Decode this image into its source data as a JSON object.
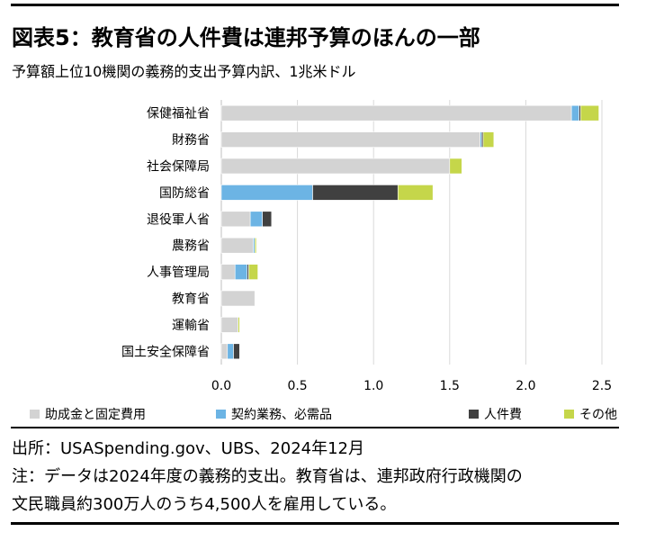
{
  "header": {
    "title": "図表5：教育省の人件費は連邦予算のほんの一部",
    "subtitle": "予算額上位10機関の義務的支出予算内訳、1兆米ドル"
  },
  "footer": {
    "source": "出所：USASpending.gov、UBS、2024年12月",
    "note_line1": "注：データは2024年度の義務的支出。教育省は、連邦政府行政機関の",
    "note_line2": "文民職員約300万人のうち4,500人を雇用している。"
  },
  "chart_data": {
    "type": "bar",
    "orientation": "horizontal",
    "stacked": true,
    "categories": [
      "保健福祉省",
      "財務省",
      "社会保障局",
      "国防総省",
      "退役軍人省",
      "農務省",
      "人事管理局",
      "教育省",
      "運輸省",
      "国土安全保障省"
    ],
    "series": [
      {
        "name": "助成金と固定費用",
        "color": "#d3d3d3",
        "values": [
          2.3,
          1.7,
          1.5,
          0.0,
          0.19,
          0.21,
          0.09,
          0.22,
          0.11,
          0.04
        ]
      },
      {
        "name": "契約業務、必需品",
        "color": "#6cb4e4",
        "values": [
          0.05,
          0.01,
          0.0,
          0.6,
          0.08,
          0.01,
          0.08,
          0.0,
          0.0,
          0.04
        ]
      },
      {
        "name": "人件費",
        "color": "#404040",
        "values": [
          0.01,
          0.01,
          0.0,
          0.56,
          0.06,
          0.0,
          0.01,
          0.0,
          0.0,
          0.04
        ]
      },
      {
        "name": "その他",
        "color": "#c5d64a",
        "values": [
          0.12,
          0.07,
          0.08,
          0.23,
          0.0,
          0.01,
          0.06,
          0.0,
          0.01,
          0.0
        ]
      }
    ],
    "xlim": [
      0,
      2.5
    ],
    "xticks": [
      "0.0",
      "0.5",
      "1.0",
      "1.5",
      "2.0",
      "2.5"
    ],
    "xlabel": "",
    "ylabel": "",
    "grid": "vertical",
    "legend_position": "bottom"
  }
}
